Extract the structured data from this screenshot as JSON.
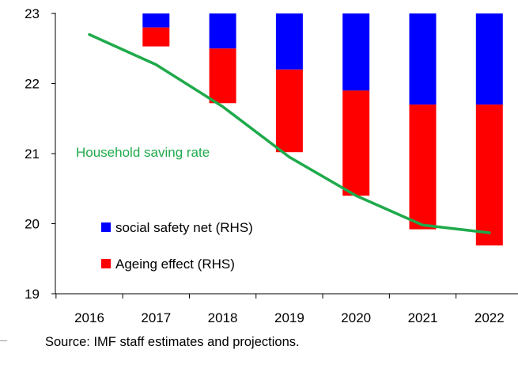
{
  "chart_data": {
    "type": "bar+line",
    "categories": [
      "2016",
      "2017",
      "2018",
      "2019",
      "2020",
      "2021",
      "2022"
    ],
    "y_axis": {
      "min": 19,
      "max": 23,
      "ticks": [
        "19",
        "20",
        "21",
        "22",
        "23"
      ]
    },
    "bars": {
      "stacked_downward_from": 23,
      "series": [
        {
          "name": "social safety net (RHS)",
          "color": "#0000ff",
          "values": [
            null,
            -0.2,
            -0.5,
            -0.8,
            -1.1,
            -1.3,
            -1.3
          ]
        },
        {
          "name": "Ageing effect (RHS)",
          "color": "#ff0000",
          "values": [
            null,
            -0.27,
            -0.78,
            -1.18,
            -1.5,
            -1.78,
            -2.01
          ]
        }
      ]
    },
    "line": {
      "name": "Household saving rate",
      "color": "#1faa4b",
      "values": [
        22.7,
        22.27,
        21.67,
        20.95,
        20.4,
        19.98,
        19.87
      ]
    },
    "legend": {
      "position": "inside-bottom-left",
      "items": [
        "social safety net (RHS)",
        "Ageing effect (RHS)"
      ]
    },
    "annotation": "Household saving rate",
    "grid": false
  },
  "source_note": "Source: IMF staff estimates and projections."
}
